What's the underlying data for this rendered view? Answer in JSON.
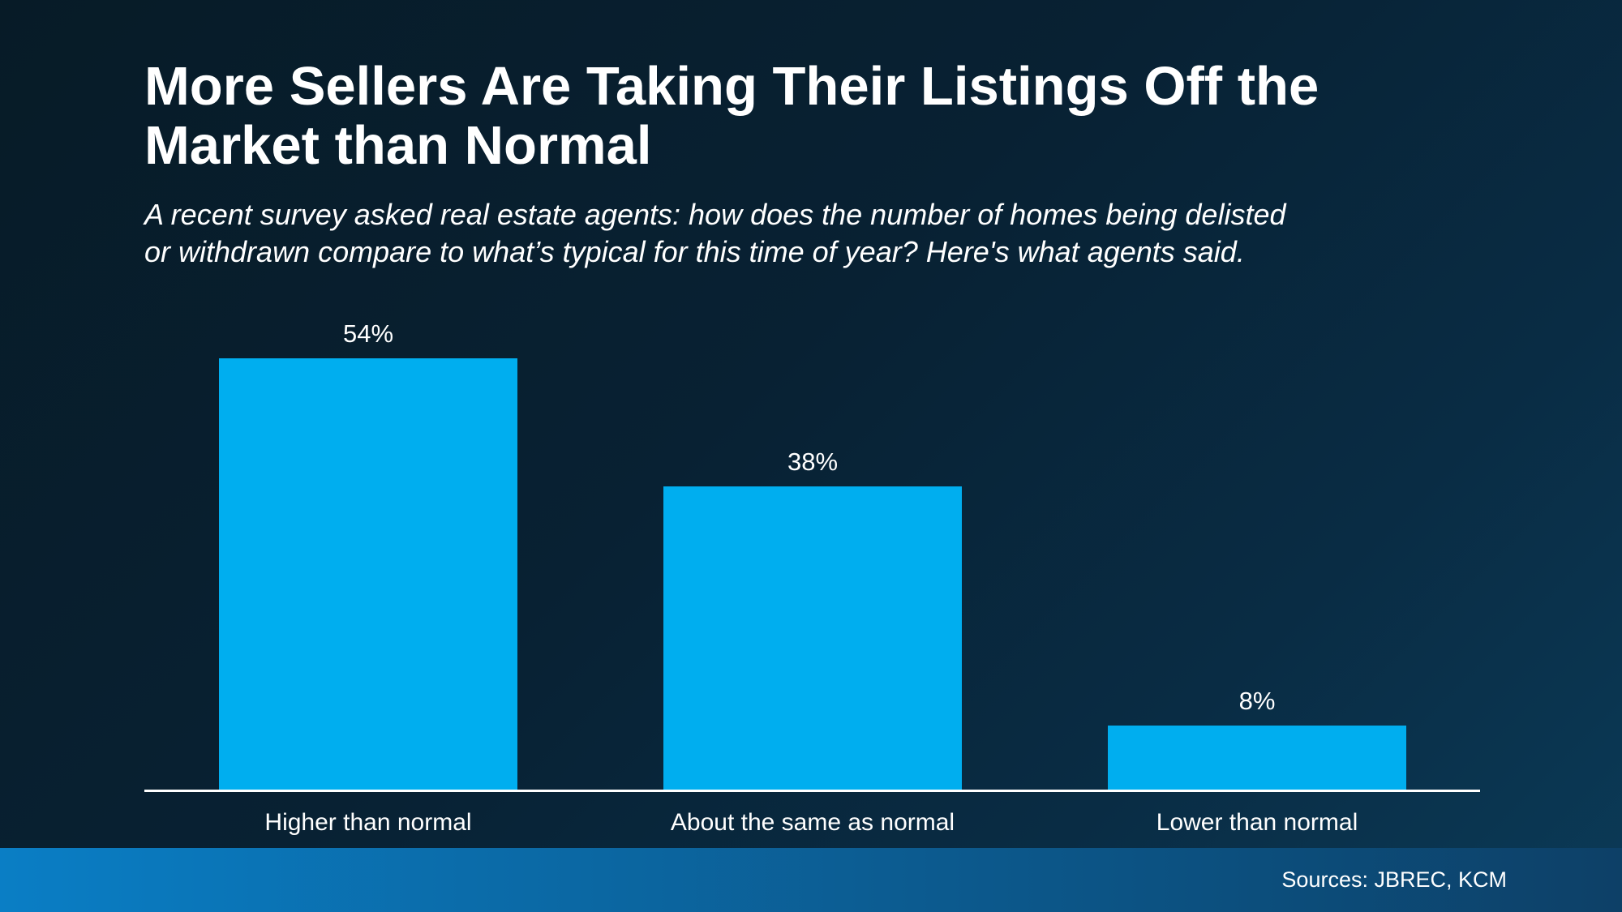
{
  "header": {
    "title_lines": [
      "More Sellers Are Taking Their Listings Off the",
      "Market than Normal"
    ],
    "subtitle_lines": [
      "A recent survey asked real estate agents: how does the number of homes being delisted",
      "or withdrawn compare to what’s typical for this time of year? Here's what agents said."
    ]
  },
  "chart_data": {
    "type": "bar",
    "title": "More Sellers Are Taking Their Listings Off the Market than Normal",
    "subtitle": "A recent survey asked real estate agents: how does the number of homes being delisted or withdrawn compare to what’s typical for this time of year? Here's what agents said.",
    "categories": [
      "Higher than normal",
      "About the same as normal",
      "Lower than normal"
    ],
    "values": [
      54,
      38,
      8
    ],
    "value_labels": [
      "54%",
      "38%",
      "8%"
    ],
    "xlabel": "",
    "ylabel": "",
    "ylim": [
      0,
      60
    ],
    "grid": false,
    "legend": false,
    "bar_color": "#00aeef",
    "axis_line_color": "#ffffff",
    "label_color": "#ffffff"
  },
  "footer": {
    "sources": "Sources: JBREC, KCM",
    "gradient_left": "#0a7ec5",
    "gradient_right": "#0d4067"
  },
  "colors": {
    "background_top_left": "#071b27",
    "background_bottom_right": "#0b3a57",
    "text": "#ffffff"
  }
}
